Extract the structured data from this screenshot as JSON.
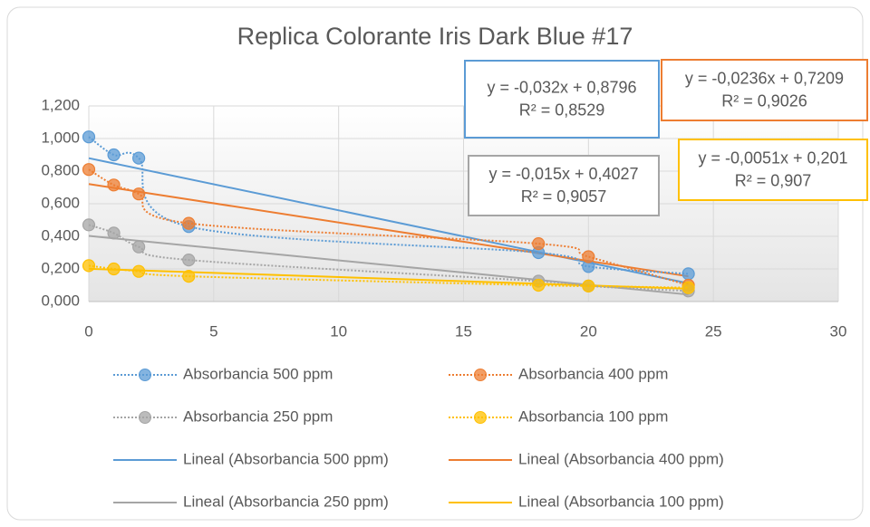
{
  "chart_data": {
    "type": "scatter",
    "title": "Replica Colorante Iris Dark Blue #17",
    "x": [
      0,
      1,
      2,
      4,
      18,
      20,
      24
    ],
    "series": [
      {
        "name": "Absorbancia 500 ppm",
        "color": "#5b9bd5",
        "values": [
          1.01,
          0.9,
          0.88,
          0.46,
          0.3,
          0.215,
          0.17
        ]
      },
      {
        "name": "Absorbancia 400 ppm",
        "color": "#ed7d31",
        "values": [
          0.81,
          0.715,
          0.66,
          0.48,
          0.355,
          0.275,
          0.1
        ]
      },
      {
        "name": "Absorbancia 250 ppm",
        "color": "#a5a5a5",
        "values": [
          0.47,
          0.42,
          0.335,
          0.255,
          0.125,
          0.095,
          0.065
        ]
      },
      {
        "name": "Absorbancia 100 ppm",
        "color": "#ffc000",
        "values": [
          0.22,
          0.2,
          0.185,
          0.155,
          0.1,
          0.095,
          0.085
        ]
      }
    ],
    "trendlines": [
      {
        "name": "Lineal (Absorbancia 500 ppm)",
        "color": "#5b9bd5",
        "slope": -0.032,
        "intercept": 0.8796,
        "equation": "y = -0,032x + 0,8796",
        "r2": "R² = 0,8529"
      },
      {
        "name": "Lineal (Absorbancia 400 ppm)",
        "color": "#ed7d31",
        "slope": -0.0236,
        "intercept": 0.7209,
        "equation": "y = -0,0236x + 0,7209",
        "r2": "R² = 0,9026"
      },
      {
        "name": "Lineal (Absorbancia 250 ppm)",
        "color": "#a5a5a5",
        "slope": -0.015,
        "intercept": 0.4027,
        "equation": "y = -0,015x + 0,4027",
        "r2": "R² = 0,9057"
      },
      {
        "name": "Lineal (Absorbancia 100 ppm)",
        "color": "#ffc000",
        "slope": -0.0051,
        "intercept": 0.201,
        "equation": "y = -0,0051x + 0,201",
        "r2": "R² = 0,907"
      }
    ],
    "xlim": [
      0,
      30
    ],
    "xticks": [
      0,
      5,
      10,
      15,
      20,
      25,
      30
    ],
    "ylim": [
      0,
      1.2
    ],
    "yticks": [
      {
        "value": 0,
        "label": "0,000"
      },
      {
        "value": 0.2,
        "label": "0,200"
      },
      {
        "value": 0.4,
        "label": "0,400"
      },
      {
        "value": 0.6,
        "label": "0,600"
      },
      {
        "value": 0.8,
        "label": "0,800"
      },
      {
        "value": 1.0,
        "label": "1,000"
      },
      {
        "value": 1.2,
        "label": "1,200"
      }
    ],
    "grid": true,
    "legend": "bottom"
  }
}
